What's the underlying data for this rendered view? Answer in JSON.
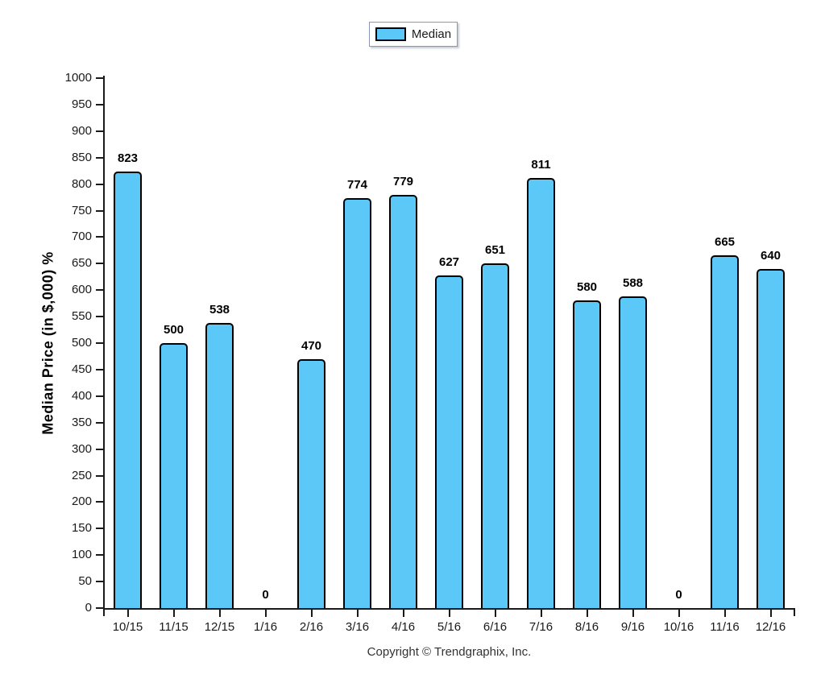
{
  "legend": {
    "label": "Median",
    "swatch_color": "#5BC8F8"
  },
  "footer": {
    "copyright": "Copyright © Trendgraphix, Inc."
  },
  "chart_data": {
    "type": "bar",
    "title": "",
    "series_name": "Median",
    "categories": [
      "10/15",
      "11/15",
      "12/15",
      "1/16",
      "2/16",
      "3/16",
      "4/16",
      "5/16",
      "6/16",
      "7/16",
      "8/16",
      "9/16",
      "10/16",
      "11/16",
      "12/16"
    ],
    "values": [
      823,
      500,
      538,
      0,
      470,
      774,
      779,
      627,
      651,
      811,
      580,
      588,
      0,
      665,
      640
    ],
    "xlabel": "",
    "ylabel": "Median Price (in $,000) %",
    "ylim": [
      0,
      1000
    ],
    "ytick_step": 50,
    "grid": false,
    "legend_position": "top-center",
    "value_labels": true,
    "bar_color": "#5BC8F8",
    "bar_border_color": "#000000"
  }
}
